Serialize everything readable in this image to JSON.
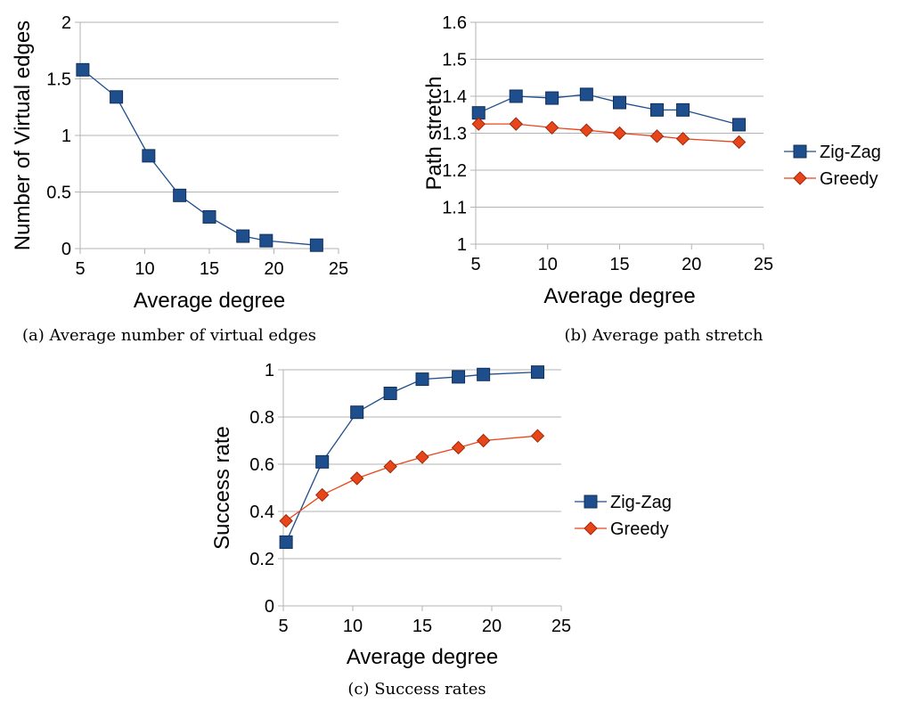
{
  "chart_data": [
    {
      "type": "line",
      "x": [
        5.2,
        7.8,
        10.3,
        12.7,
        15.0,
        17.6,
        19.4,
        23.3
      ],
      "series": [
        {
          "values": [
            1.58,
            1.34,
            0.82,
            0.47,
            0.28,
            0.11,
            0.07,
            0.03
          ],
          "color": "#1F4E8C",
          "marker": "square"
        }
      ],
      "xlabel": "Average degree",
      "ylabel": "Number of Virtual edges",
      "xlim": [
        5,
        25
      ],
      "ylim": [
        0,
        2
      ],
      "xticks": [
        5,
        10,
        15,
        20,
        25
      ],
      "yticks": [
        "0",
        "0.5",
        "1",
        "1.5",
        "2"
      ],
      "grid": true,
      "caption": "(a) Average number of virtual edges"
    },
    {
      "type": "line",
      "x": [
        5.2,
        7.8,
        10.3,
        12.7,
        15.0,
        17.6,
        19.4,
        23.3
      ],
      "series": [
        {
          "name": "Zig-Zag",
          "values": [
            1.355,
            1.4,
            1.395,
            1.405,
            1.383,
            1.363,
            1.363,
            1.323
          ],
          "color": "#1F4E8C",
          "marker": "square"
        },
        {
          "name": "Greedy",
          "values": [
            1.325,
            1.325,
            1.315,
            1.308,
            1.3,
            1.292,
            1.285,
            1.276
          ],
          "color": "#E8461A",
          "marker": "diamond"
        }
      ],
      "xlabel": "Average degree",
      "ylabel": "Path stretch",
      "xlim": [
        5,
        25
      ],
      "ylim": [
        1,
        1.6
      ],
      "xticks": [
        5,
        10,
        15,
        20,
        25
      ],
      "yticks": [
        "1",
        "1.1",
        "1.2",
        "1.3",
        "1.4",
        "1.5",
        "1.6"
      ],
      "grid": true,
      "legend": "right",
      "caption": "(b) Average path stretch"
    },
    {
      "type": "line",
      "x": [
        5.2,
        7.8,
        10.3,
        12.7,
        15.0,
        17.6,
        19.4,
        23.3
      ],
      "series": [
        {
          "name": "Zig-Zag",
          "values": [
            0.27,
            0.61,
            0.82,
            0.9,
            0.96,
            0.97,
            0.98,
            0.99
          ],
          "color": "#1F4E8C",
          "marker": "square"
        },
        {
          "name": "Greedy",
          "values": [
            0.36,
            0.47,
            0.54,
            0.59,
            0.63,
            0.67,
            0.7,
            0.72
          ],
          "color": "#E8461A",
          "marker": "diamond"
        }
      ],
      "xlabel": "Average degree",
      "ylabel": "Success rate",
      "xlim": [
        5,
        25
      ],
      "ylim": [
        0,
        1
      ],
      "xticks": [
        5,
        10,
        15,
        20,
        25
      ],
      "yticks": [
        "0",
        "0.2",
        "0.4",
        "0.6",
        "0.8",
        "1"
      ],
      "grid": true,
      "legend": "right",
      "caption": "(c) Success rates"
    }
  ]
}
